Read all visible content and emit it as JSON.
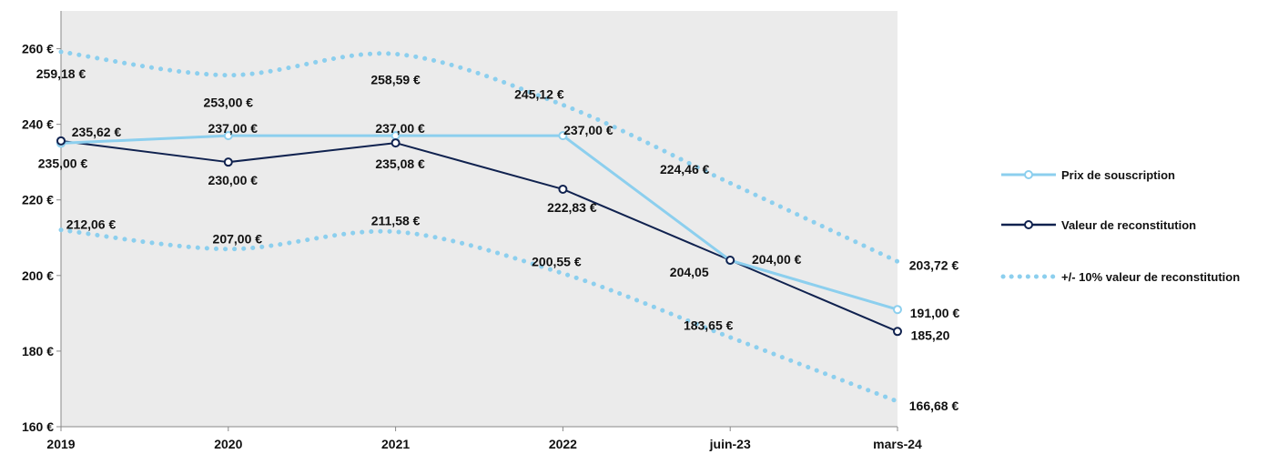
{
  "chart_data": {
    "type": "line",
    "title": "",
    "xlabel": "",
    "ylabel": "",
    "categories": [
      "2019",
      "2020",
      "2021",
      "2022",
      "juin-23",
      "mars-24"
    ],
    "ylim": [
      160,
      270
    ],
    "yticks": [
      160,
      180,
      200,
      220,
      240,
      260
    ],
    "ytick_labels": [
      "160 €",
      "180 €",
      "200 €",
      "220 €",
      "240 €",
      "260 €"
    ],
    "grid": false,
    "plot_background": "#ebebeb",
    "legend_position": "right",
    "series": [
      {
        "name": "Prix de souscription",
        "key": "prix",
        "style": "line-marker",
        "color": "#8ccfee",
        "values": [
          235.0,
          237.0,
          237.0,
          237.0,
          204.0,
          191.0
        ],
        "labels": [
          "235,00 €",
          "237,00 €",
          "237,00 €",
          "237,00 €",
          "204,00 €",
          "191,00 €"
        ]
      },
      {
        "name": "Valeur de reconstitution",
        "key": "valeur",
        "style": "line-marker",
        "color": "#10224f",
        "values": [
          235.62,
          230.0,
          235.08,
          222.83,
          204.05,
          185.2
        ],
        "labels": [
          "235,62 €",
          "230,00 €",
          "235,08 €",
          "222,83 €",
          "204,05",
          "185,20"
        ]
      },
      {
        "name": "+/- 10% valeur de reconstitution",
        "key": "plus10",
        "style": "dotted",
        "color": "#8ccfee",
        "values": [
          259.18,
          253.0,
          258.59,
          245.12,
          224.46,
          203.72
        ],
        "labels": [
          "259,18 €",
          "253,00 €",
          "258,59 €",
          "245,12 €",
          "224,46 €",
          "203,72 €"
        ]
      },
      {
        "name": "",
        "key": "minus10",
        "style": "dotted",
        "color": "#8ccfee",
        "values": [
          212.06,
          207.0,
          211.58,
          200.55,
          183.65,
          166.68
        ],
        "labels": [
          "212,06 €",
          "207,00 €",
          "211,58 €",
          "200,55 €",
          "183,65 €",
          "166,68 €"
        ]
      }
    ],
    "legend": [
      {
        "label": "Prix de souscription",
        "series": "prix"
      },
      {
        "label": "Valeur de reconstitution",
        "series": "valeur"
      },
      {
        "label": "+/- 10% valeur de reconstitution",
        "series": "plus10"
      }
    ]
  }
}
